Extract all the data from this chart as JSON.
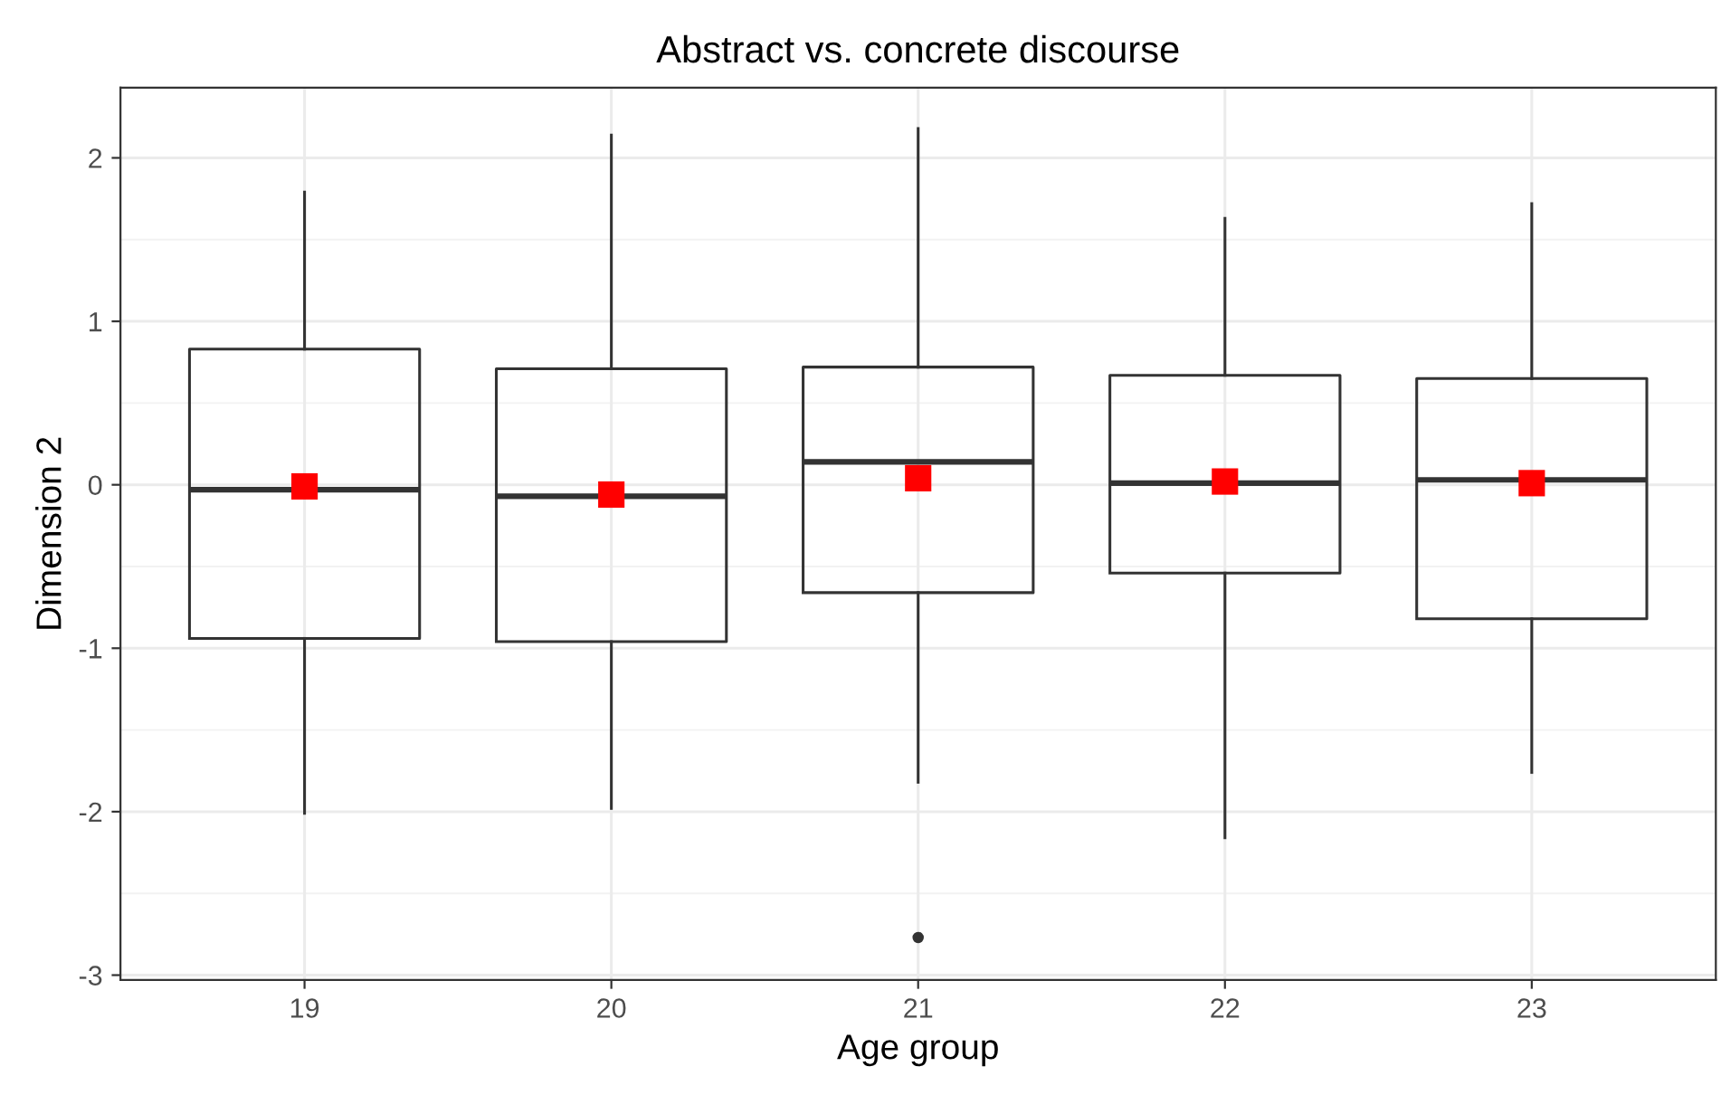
{
  "chart_data": {
    "type": "box",
    "title": "Abstract vs. concrete discourse",
    "xlabel": "Age group",
    "ylabel": "Dimension 2",
    "categories": [
      "19",
      "20",
      "21",
      "22",
      "23"
    ],
    "boxes": [
      {
        "low": -2.01,
        "q1": -0.94,
        "median": -0.03,
        "q3": 0.83,
        "high": 1.79
      },
      {
        "low": -1.98,
        "q1": -0.96,
        "median": -0.07,
        "q3": 0.71,
        "high": 2.14
      },
      {
        "low": -1.82,
        "q1": -0.66,
        "median": 0.14,
        "q3": 0.72,
        "high": 2.18,
        "outliers": [
          -2.77
        ]
      },
      {
        "low": -2.16,
        "q1": -0.54,
        "median": 0.01,
        "q3": 0.67,
        "high": 1.63
      },
      {
        "low": -1.76,
        "q1": -0.82,
        "median": 0.03,
        "q3": 0.65,
        "high": 1.72
      }
    ],
    "color": "#333333",
    "series": [
      {
        "type": "scatter",
        "x": [
          "19",
          "20",
          "21",
          "22",
          "23"
        ],
        "values": [
          -0.01,
          -0.06,
          0.04,
          0.02,
          0.01
        ],
        "color": "#ff0000",
        "marker": "square"
      }
    ],
    "ylim": [
      -3.03,
      2.43
    ],
    "yticks": [
      -3,
      -2,
      -1,
      0,
      1,
      2
    ],
    "grid": true
  }
}
